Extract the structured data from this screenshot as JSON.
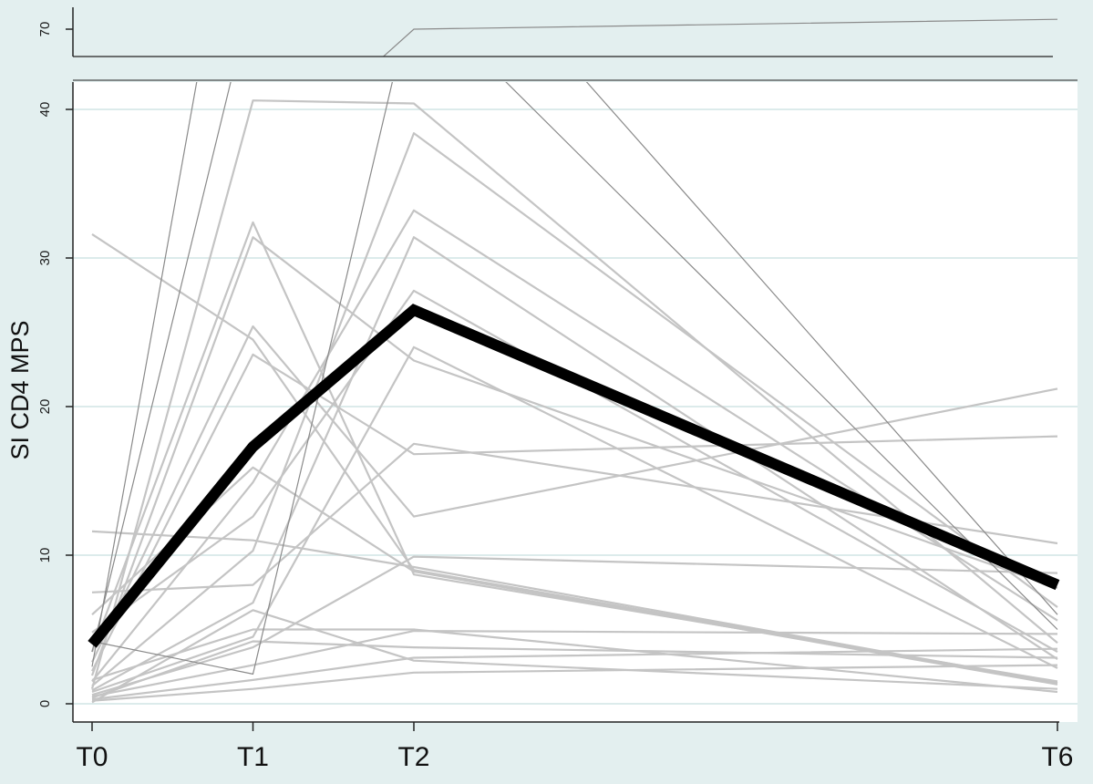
{
  "chart_data": {
    "type": "line",
    "title": "",
    "ylabel": "SI CD4 MPS",
    "xlabel": "",
    "categories": [
      "T0",
      "T1",
      "T2",
      "T6"
    ],
    "x_positions": [
      0,
      1,
      2,
      6
    ],
    "ylim_lower_panel": [
      0,
      42
    ],
    "ylim_upper_panel": [
      64,
      74
    ],
    "y_ticks_lower": [
      0,
      10,
      20,
      30,
      40
    ],
    "y_ticks_upper": [
      70
    ],
    "grid": true,
    "legend": "none",
    "colors": {
      "background": "#e3efef",
      "plot_bg": "#ffffff",
      "gridline": "#dcebeb",
      "individual_line": "#c4c4c4",
      "outlier_line": "#8a8a8a",
      "mean_line": "#000000",
      "axis": "#222222"
    },
    "mean_series": {
      "values": [
        4.0,
        17.3,
        26.5,
        8.0
      ]
    },
    "individual_series": [
      [
        31.6,
        24.5,
        9.0,
        1.4
      ],
      [
        11.6,
        11.0,
        9.2,
        1.4
      ],
      [
        7.5,
        8.0,
        17.5,
        10.8
      ],
      [
        6.0,
        15.9,
        8.9,
        1.3
      ],
      [
        4.8,
        12.6,
        27.8,
        3.5
      ],
      [
        3.5,
        32.4,
        8.7,
        1.5
      ],
      [
        2.8,
        25.4,
        12.6,
        21.2
      ],
      [
        2.2,
        23.5,
        16.8,
        18.0
      ],
      [
        1.9,
        31.4,
        23.1,
        7.8
      ],
      [
        1.5,
        14.9,
        33.2,
        5.6
      ],
      [
        1.2,
        10.3,
        38.4,
        6.5
      ],
      [
        1.0,
        40.6,
        40.4,
        4.1
      ],
      [
        0.9,
        6.8,
        31.4,
        3.0
      ],
      [
        0.8,
        4.5,
        24.0,
        2.4
      ],
      [
        0.6,
        3.8,
        9.9,
        8.8
      ],
      [
        0.5,
        2.6,
        4.9,
        4.7
      ],
      [
        0.4,
        4.2,
        3.8,
        3.1
      ],
      [
        0.3,
        1.6,
        3.1,
        3.7
      ],
      [
        0.2,
        1.0,
        2.1,
        2.6
      ],
      [
        0.1,
        6.3,
        2.9,
        1.0
      ],
      [
        1.6,
        5.0,
        5.0,
        0.8
      ]
    ],
    "outlier_series": [
      [
        3.5,
        48.0,
        70.0,
        71.5
      ],
      [
        4.2,
        2.0,
        48.0,
        5.0
      ],
      [
        2.5,
        63.0,
        55.0,
        6.0
      ]
    ]
  }
}
